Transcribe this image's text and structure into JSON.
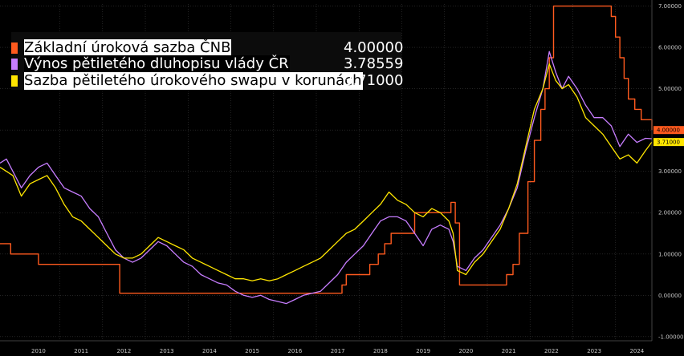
{
  "chart_data": {
    "type": "line",
    "title": "",
    "xlabel": "",
    "ylabel": "",
    "x_ticks": [
      "2010",
      "2011",
      "2012",
      "2013",
      "2014",
      "2015",
      "2016",
      "2017",
      "2018",
      "2019",
      "2020",
      "2021",
      "2022",
      "2023",
      "2024"
    ],
    "y_ticks": [
      "-1.00000",
      "0.00000",
      "1.00000",
      "2.00000",
      "3.00000",
      "4.00000",
      "5.00000",
      "6.00000",
      "7.00000"
    ],
    "ylim": [
      -1.1,
      7.05
    ],
    "xlim": [
      2009.6,
      2024.85
    ],
    "grid": true,
    "legend_position": "top-left",
    "series": [
      {
        "name": "Základní úroková sazba ČNB",
        "last_value": "4.00000",
        "color": "#ff5a1e",
        "step": true,
        "x": [
          2009.6,
          2009.8,
          2009.85,
          2010.5,
          2012.4,
          2016.8,
          2017.6,
          2017.7,
          2017.85,
          2017.95,
          2018.25,
          2018.45,
          2018.6,
          2018.75,
          2019.3,
          2020.15,
          2020.25,
          2020.35,
          2021.45,
          2021.6,
          2021.75,
          2021.85,
          2021.95,
          2022.1,
          2022.25,
          2022.35,
          2022.45,
          2022.55,
          2023.8,
          2023.9,
          2024.0,
          2024.1,
          2024.2,
          2024.3,
          2024.45,
          2024.6,
          2024.85
        ],
        "y": [
          1.25,
          1.25,
          1.0,
          0.75,
          0.05,
          0.05,
          0.25,
          0.5,
          0.5,
          0.5,
          0.75,
          1.0,
          1.25,
          1.5,
          2.0,
          2.25,
          1.75,
          0.25,
          0.5,
          0.75,
          1.5,
          1.5,
          2.75,
          3.75,
          4.5,
          5.0,
          5.75,
          7.0,
          7.0,
          6.75,
          6.25,
          5.75,
          5.25,
          4.75,
          4.5,
          4.25,
          4.0
        ]
      },
      {
        "name": "Výnos pětiletého dluhopisu vlády ČR",
        "last_value": "3.78559",
        "color": "#c77dff",
        "x": [
          2009.6,
          2009.75,
          2009.9,
          2010.1,
          2010.3,
          2010.5,
          2010.7,
          2010.9,
          2011.1,
          2011.3,
          2011.5,
          2011.7,
          2011.9,
          2012.1,
          2012.3,
          2012.5,
          2012.7,
          2012.9,
          2013.1,
          2013.3,
          2013.5,
          2013.7,
          2013.9,
          2014.1,
          2014.3,
          2014.5,
          2014.7,
          2014.9,
          2015.1,
          2015.3,
          2015.5,
          2015.7,
          2015.9,
          2016.1,
          2016.3,
          2016.5,
          2016.7,
          2016.9,
          2017.1,
          2017.3,
          2017.5,
          2017.7,
          2017.9,
          2018.1,
          2018.3,
          2018.5,
          2018.7,
          2018.9,
          2019.1,
          2019.3,
          2019.5,
          2019.7,
          2019.9,
          2020.1,
          2020.2,
          2020.3,
          2020.5,
          2020.7,
          2020.9,
          2021.1,
          2021.3,
          2021.5,
          2021.7,
          2021.9,
          2022.1,
          2022.3,
          2022.45,
          2022.6,
          2022.75,
          2022.9,
          2023.1,
          2023.3,
          2023.5,
          2023.7,
          2023.9,
          2024.1,
          2024.3,
          2024.5,
          2024.7,
          2024.85
        ],
        "y": [
          3.2,
          3.3,
          3.0,
          2.6,
          2.9,
          3.1,
          3.2,
          2.9,
          2.6,
          2.5,
          2.4,
          2.1,
          1.9,
          1.5,
          1.1,
          0.9,
          0.8,
          0.9,
          1.1,
          1.3,
          1.2,
          1.0,
          0.8,
          0.7,
          0.5,
          0.4,
          0.3,
          0.25,
          0.1,
          0.0,
          -0.05,
          0.0,
          -0.1,
          -0.15,
          -0.2,
          -0.1,
          0.0,
          0.05,
          0.1,
          0.3,
          0.5,
          0.8,
          1.0,
          1.2,
          1.5,
          1.8,
          1.9,
          1.9,
          1.8,
          1.5,
          1.2,
          1.6,
          1.7,
          1.6,
          1.3,
          0.7,
          0.6,
          0.9,
          1.1,
          1.4,
          1.7,
          2.1,
          2.6,
          3.5,
          4.3,
          5.0,
          5.9,
          5.4,
          5.0,
          5.3,
          5.0,
          4.6,
          4.3,
          4.3,
          4.1,
          3.6,
          3.9,
          3.7,
          3.8,
          3.79
        ]
      },
      {
        "name": "Sazba pětiletého úrokového swapu v korunách",
        "last_value": "3.71000",
        "color": "#ffe600",
        "x": [
          2009.6,
          2009.75,
          2009.9,
          2010.1,
          2010.3,
          2010.5,
          2010.7,
          2010.9,
          2011.1,
          2011.3,
          2011.5,
          2011.7,
          2011.9,
          2012.1,
          2012.3,
          2012.5,
          2012.7,
          2012.9,
          2013.1,
          2013.3,
          2013.5,
          2013.7,
          2013.9,
          2014.1,
          2014.3,
          2014.5,
          2014.7,
          2014.9,
          2015.1,
          2015.3,
          2015.5,
          2015.7,
          2015.9,
          2016.1,
          2016.3,
          2016.5,
          2016.7,
          2016.9,
          2017.1,
          2017.3,
          2017.5,
          2017.7,
          2017.9,
          2018.1,
          2018.3,
          2018.5,
          2018.7,
          2018.9,
          2019.1,
          2019.3,
          2019.5,
          2019.7,
          2019.9,
          2020.1,
          2020.2,
          2020.3,
          2020.5,
          2020.7,
          2020.9,
          2021.1,
          2021.3,
          2021.5,
          2021.7,
          2021.9,
          2022.1,
          2022.3,
          2022.45,
          2022.6,
          2022.75,
          2022.9,
          2023.1,
          2023.3,
          2023.5,
          2023.7,
          2023.9,
          2024.1,
          2024.3,
          2024.5,
          2024.7,
          2024.85
        ],
        "y": [
          3.1,
          3.0,
          2.9,
          2.4,
          2.7,
          2.8,
          2.9,
          2.6,
          2.2,
          1.9,
          1.8,
          1.6,
          1.4,
          1.2,
          1.0,
          0.9,
          0.9,
          1.0,
          1.2,
          1.4,
          1.3,
          1.2,
          1.1,
          0.9,
          0.8,
          0.7,
          0.6,
          0.5,
          0.4,
          0.4,
          0.35,
          0.4,
          0.35,
          0.4,
          0.5,
          0.6,
          0.7,
          0.8,
          0.9,
          1.1,
          1.3,
          1.5,
          1.6,
          1.8,
          2.0,
          2.2,
          2.5,
          2.3,
          2.2,
          2.0,
          1.9,
          2.1,
          2.0,
          1.8,
          1.5,
          0.6,
          0.5,
          0.8,
          1.0,
          1.3,
          1.6,
          2.1,
          2.7,
          3.6,
          4.5,
          5.0,
          5.6,
          5.2,
          5.0,
          5.1,
          4.8,
          4.3,
          4.1,
          3.9,
          3.6,
          3.3,
          3.4,
          3.2,
          3.5,
          3.71
        ]
      }
    ]
  }
}
